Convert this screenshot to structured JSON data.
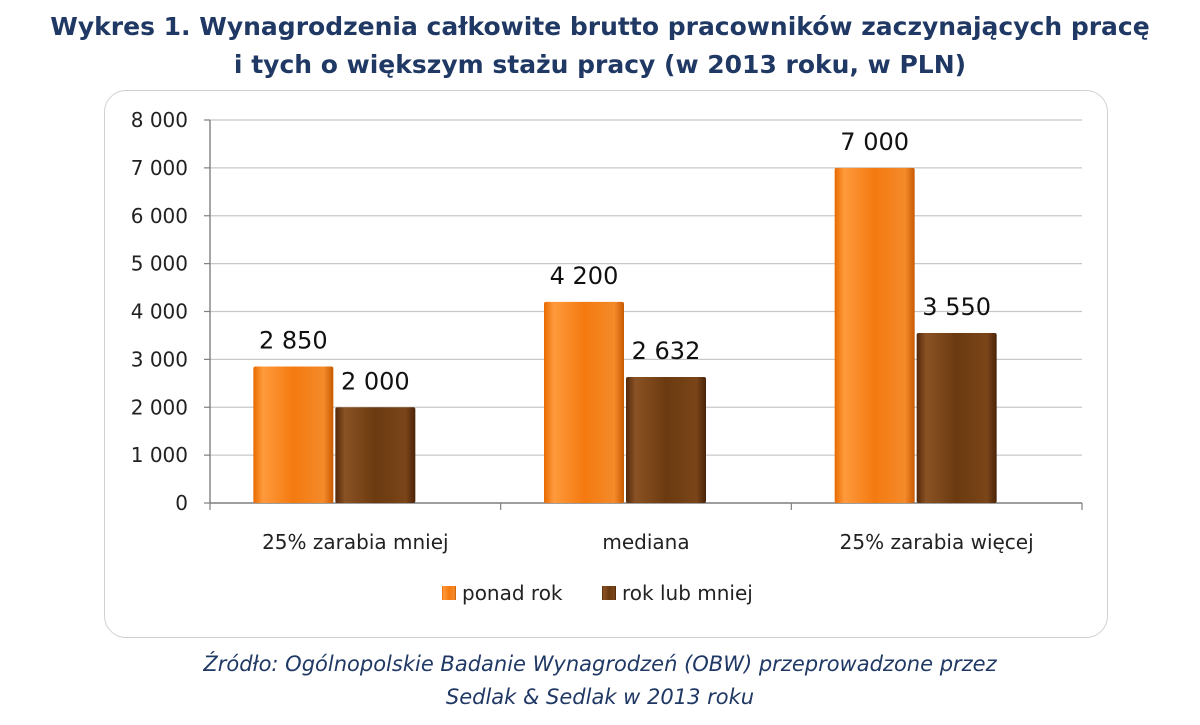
{
  "title": {
    "line1": "Wykres 1. Wynagrodzenia całkowite brutto pracowników zaczynających pracę",
    "line2": "i tych o większym stażu pracy (w 2013 roku, w PLN)"
  },
  "source": {
    "line1": "Źródło: Ogólnopolskie Badanie Wynagrodzeń (OBW) przeprowadzone przez",
    "line2": "Sedlak & Sedlak w 2013 roku"
  },
  "chart_data": {
    "type": "bar",
    "categories": [
      "25% zarabia mniej",
      "mediana",
      "25% zarabia więcej"
    ],
    "series": [
      {
        "name": "ponad rok",
        "values": [
          2850,
          4200,
          7000
        ],
        "labels": [
          "2 850",
          "4 200",
          "7 000"
        ],
        "color": "#f47a10"
      },
      {
        "name": "rok lub mniej",
        "values": [
          2000,
          2632,
          3550
        ],
        "labels": [
          "2 000",
          "2 632",
          "3 550"
        ],
        "color": "#6b3a10"
      }
    ],
    "ylim": [
      0,
      8000
    ],
    "yticks": [
      0,
      1000,
      2000,
      3000,
      4000,
      5000,
      6000,
      7000,
      8000
    ],
    "ytick_labels": [
      "0",
      "1 000",
      "2 000",
      "3 000",
      "4 000",
      "5 000",
      "6 000",
      "7 000",
      "8 000"
    ],
    "grid": true,
    "legend": "bottom"
  }
}
